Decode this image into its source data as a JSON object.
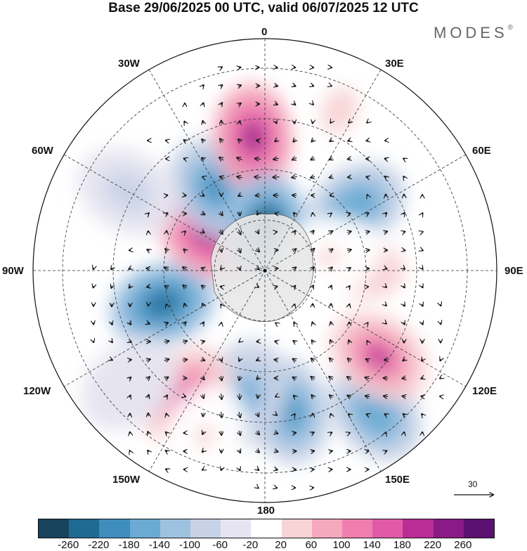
{
  "title": "Base 29/06/2025 00 UTC, valid 06/07/2025 12 UTC",
  "brand": {
    "name": "MODES",
    "mark": "®"
  },
  "longitude_labels": {
    "lon_0": "0",
    "lon_30e": "30E",
    "lon_60e": "60E",
    "lon_90e": "90E",
    "lon_120e": "120E",
    "lon_150e": "150E",
    "lon_180": "180",
    "lon_150w": "150W",
    "lon_120w": "120W",
    "lon_90w": "90W",
    "lon_60w": "60W",
    "lon_30w": "30W"
  },
  "reference_vector": {
    "label": "30"
  },
  "colorbar": {
    "colors": [
      "#17445d",
      "#1e6a93",
      "#3f8dbc",
      "#6aaad3",
      "#9fc1e0",
      "#c8d2e6",
      "#e5e4f0",
      "#ffffff",
      "#f8d4d6",
      "#f4a9bc",
      "#ef7eae",
      "#e05aa7",
      "#b92d96",
      "#8a1a86",
      "#5c1071"
    ],
    "ticks": [
      "-260",
      "-220",
      "-180",
      "-140",
      "-100",
      "-60",
      "-20",
      "20",
      "60",
      "100",
      "140",
      "180",
      "220",
      "260"
    ]
  },
  "anomaly_cells": [
    {
      "ang": 142,
      "r": 0.97,
      "v": -160
    },
    {
      "ang": 127,
      "r": 0.77,
      "v": 200
    },
    {
      "ang": 170,
      "r": 0.77,
      "v": -180
    },
    {
      "ang": 188,
      "r": 0.67,
      "v": -130
    },
    {
      "ang": 212,
      "r": 0.8,
      "v": 190
    },
    {
      "ang": 252,
      "r": 0.58,
      "v": -230
    },
    {
      "ang": 302,
      "r": 0.36,
      "v": 240
    },
    {
      "ang": 328,
      "r": 0.52,
      "v": -190
    },
    {
      "ang": 355,
      "r": 0.72,
      "v": 250
    },
    {
      "ang": 3,
      "r": 0.23,
      "v": -270
    },
    {
      "ang": 55,
      "r": 0.6,
      "v": -160
    },
    {
      "ang": 90,
      "r": 0.55,
      "v": 100
    },
    {
      "ang": 78,
      "r": 0.35,
      "v": 40
    },
    {
      "ang": 300,
      "r": 0.85,
      "v": -60
    },
    {
      "ang": 230,
      "r": 0.95,
      "v": -40
    },
    {
      "ang": 200,
      "r": 0.95,
      "v": 50
    },
    {
      "ang": 25,
      "r": 0.95,
      "v": 60
    }
  ]
}
